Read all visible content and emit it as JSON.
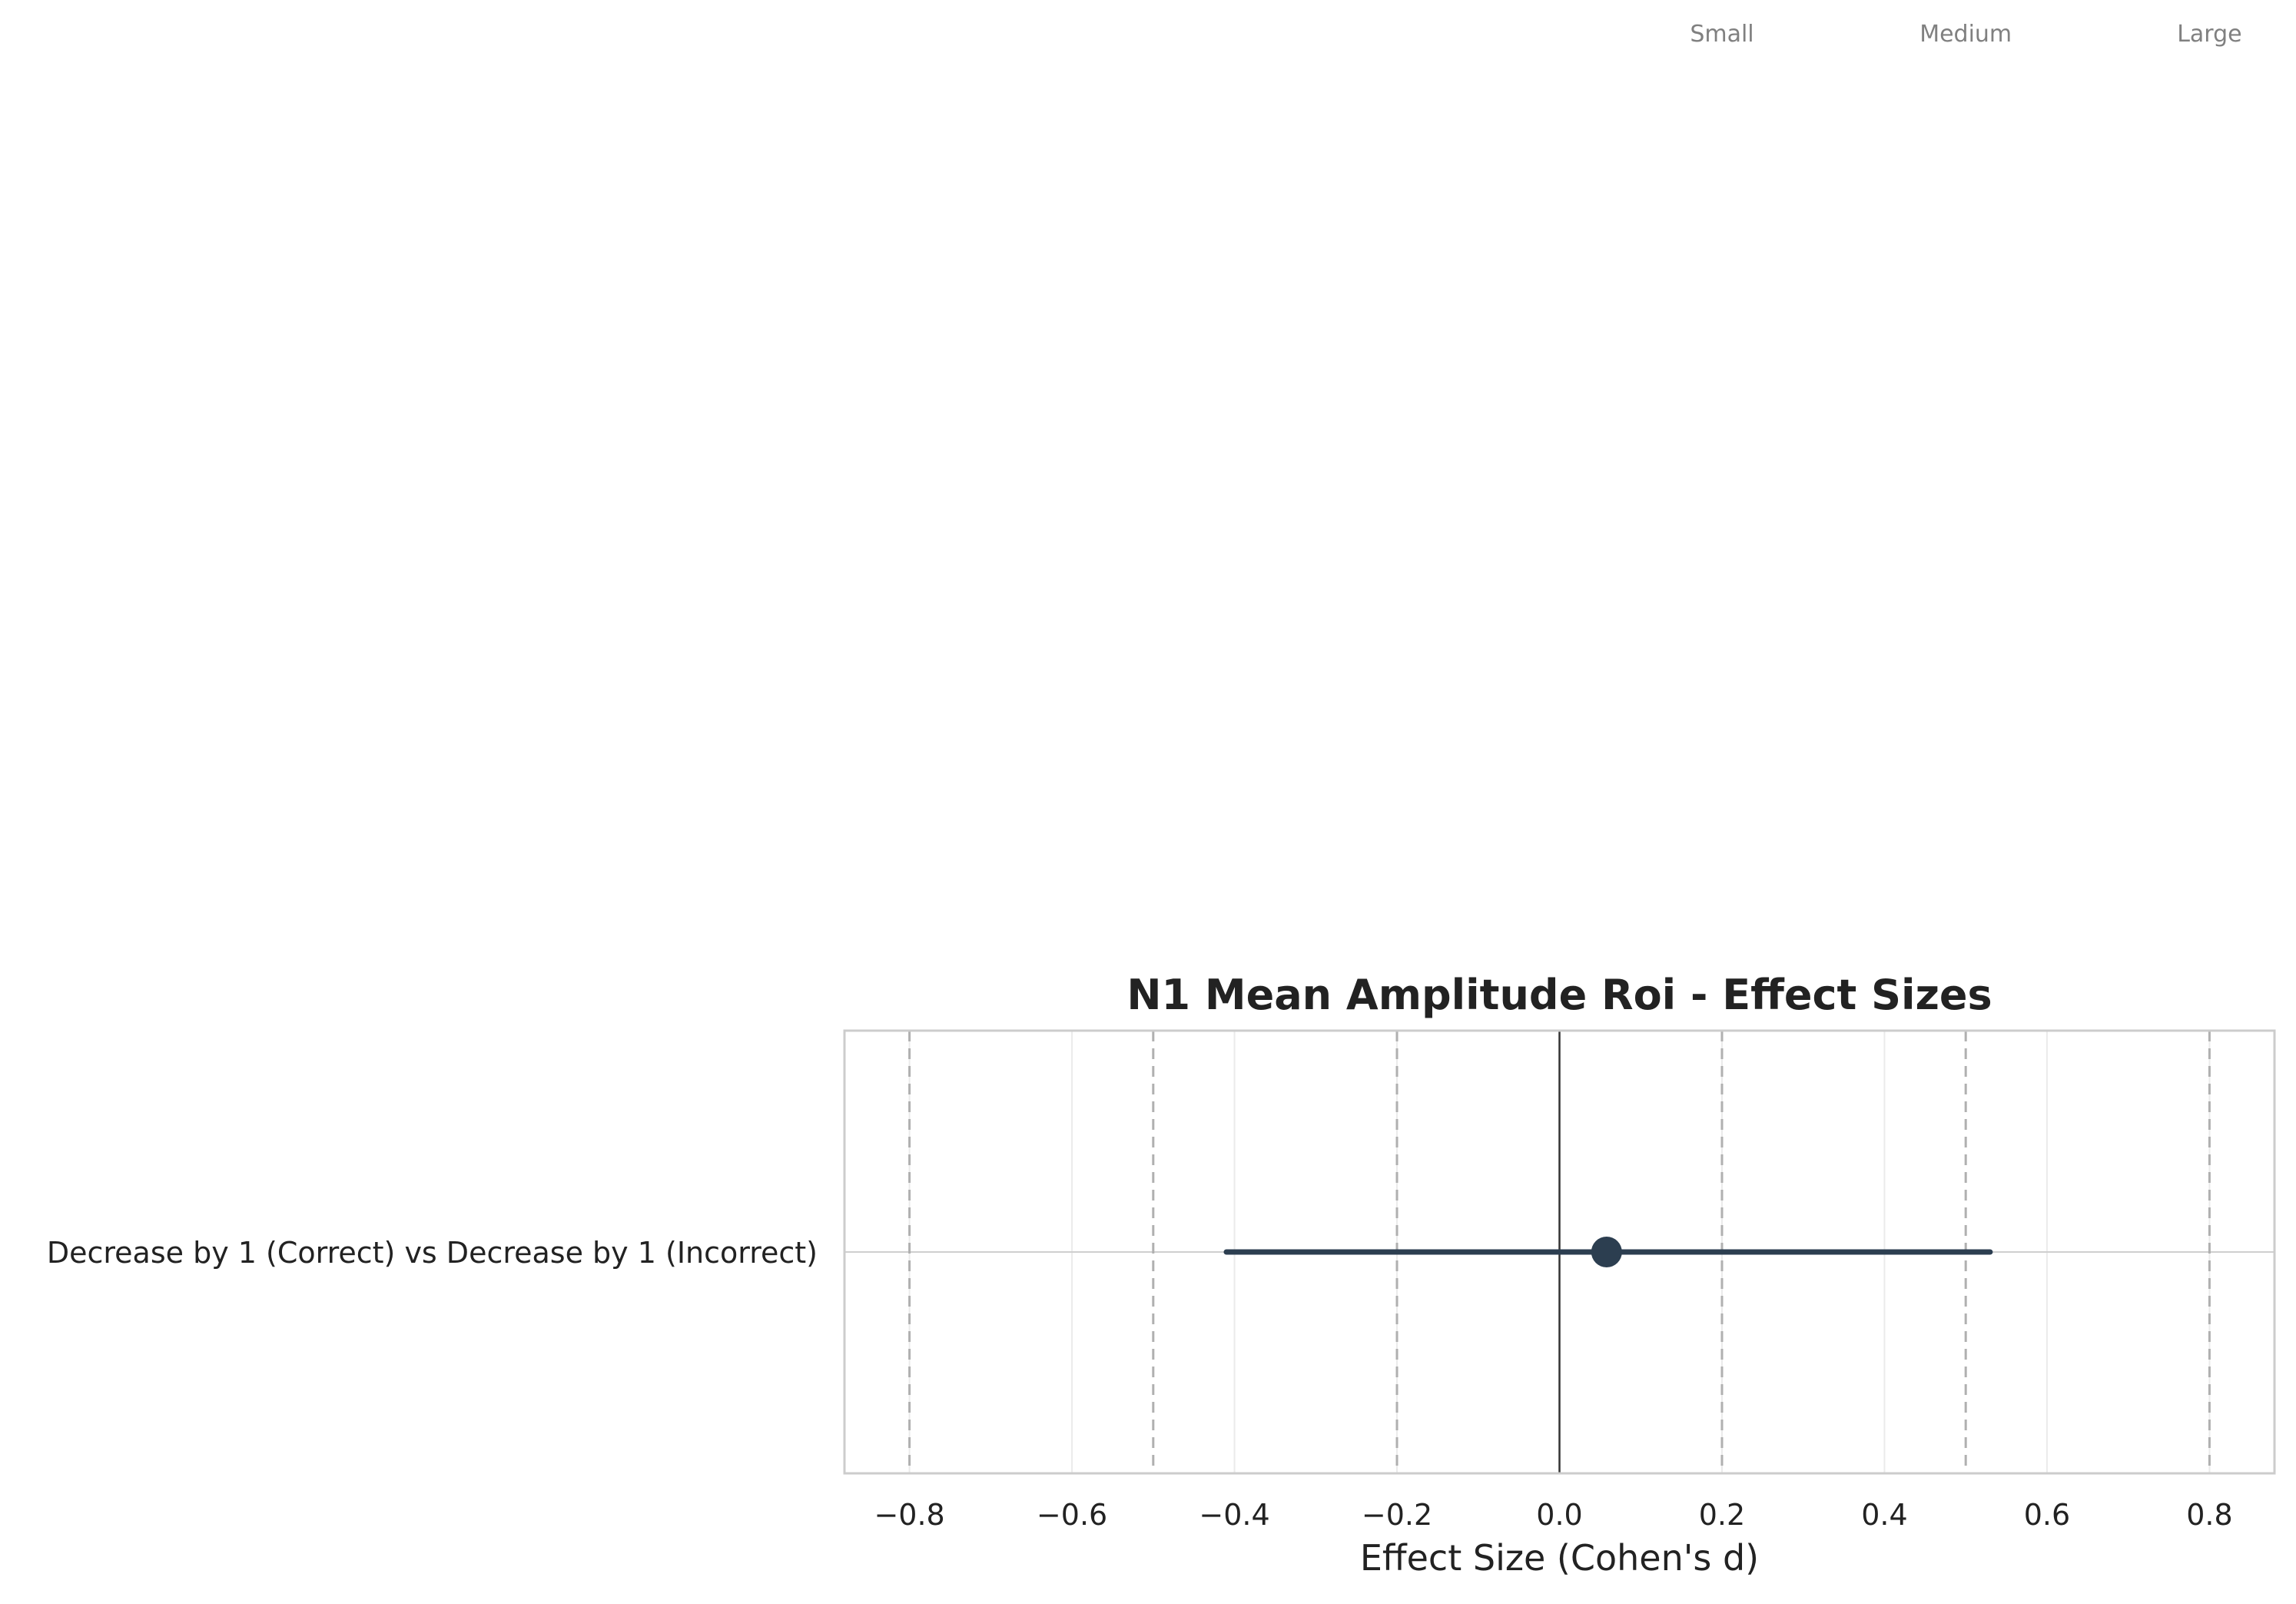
{
  "chart_data": {
    "type": "forest",
    "title": "N1 Mean Amplitude Roi - Effect Sizes",
    "xlabel": "Effect Size (Cohen's d)",
    "ylabel": "",
    "xlim": [
      -0.88,
      0.88
    ],
    "x_ticks": [
      -0.8,
      -0.6,
      -0.4,
      -0.2,
      0.0,
      0.2,
      0.4,
      0.6,
      0.8
    ],
    "x_tick_labels": [
      "−0.8",
      "−0.6",
      "−0.4",
      "−0.2",
      "0.0",
      "0.2",
      "0.4",
      "0.6",
      "0.8"
    ],
    "reference_line": 0,
    "threshold_lines": [
      -0.8,
      -0.5,
      -0.2,
      0.2,
      0.5,
      0.8
    ],
    "threshold_labels": [
      {
        "x": 0.2,
        "label": "Small"
      },
      {
        "x": 0.5,
        "label": "Medium"
      },
      {
        "x": 0.8,
        "label": "Large"
      }
    ],
    "comparisons": [
      {
        "label": "Decrease by 1 (Correct) vs Decrease by 1 (Incorrect)",
        "d": 0.058,
        "ci_low": -0.41,
        "ci_high": 0.53
      }
    ],
    "colors": {
      "point": "#2c3e50",
      "reference_line": "#333333",
      "threshold_line": "#b0b0b0",
      "grid": "#ebebeb",
      "frame": "#cccccc",
      "threshold_label": "#808080"
    },
    "grid": true
  }
}
